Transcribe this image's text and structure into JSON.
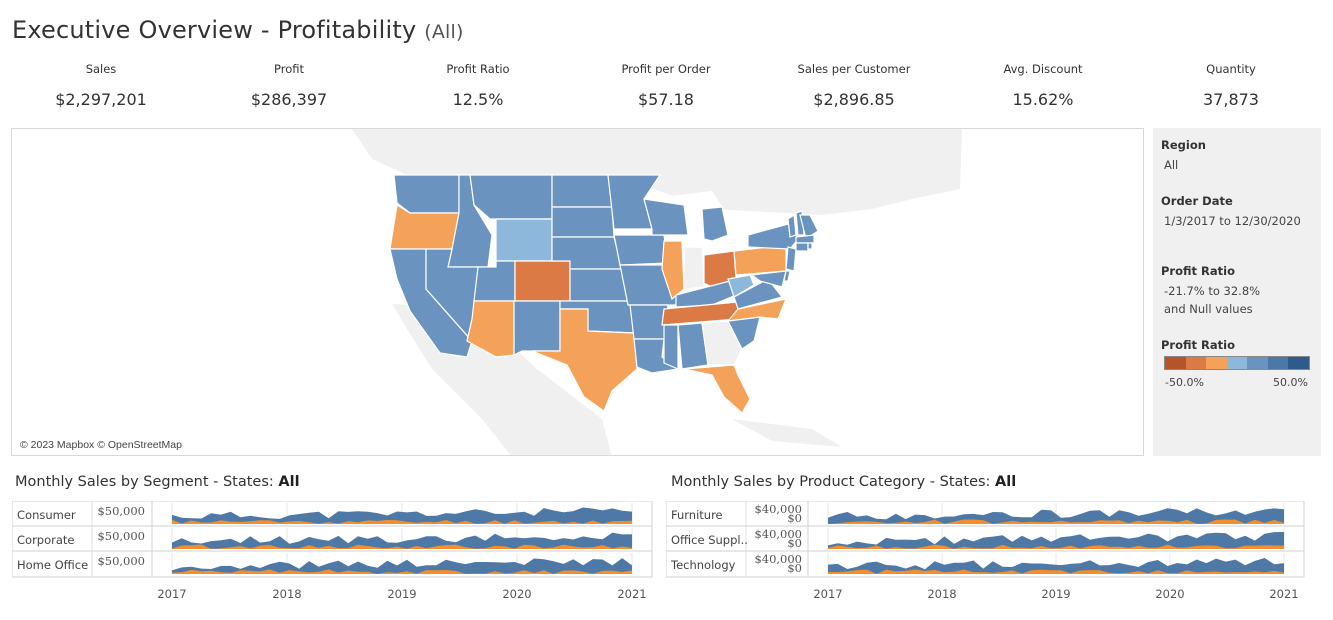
{
  "header": {
    "title": "Executive Overview - Profitability",
    "filter_suffix": "(All)"
  },
  "kpis": [
    {
      "label": "Sales",
      "value": "$2,297,201"
    },
    {
      "label": "Profit",
      "value": "$286,397"
    },
    {
      "label": "Profit Ratio",
      "value": "12.5%"
    },
    {
      "label": "Profit per Order",
      "value": "$57.18"
    },
    {
      "label": "Sales per Customer",
      "value": "$2,896.85"
    },
    {
      "label": "Avg. Discount",
      "value": "15.62%"
    },
    {
      "label": "Quantity",
      "value": "37,873"
    }
  ],
  "map": {
    "attribution": "© 2023 Mapbox © OpenStreetMap",
    "colors": {
      "dark_blue": "#6a93bf",
      "light_blue": "#8eb7dc",
      "orange": "#f4a25a",
      "dark_orange": "#db7a45",
      "land": "#f0f0f0",
      "border": "#ffffff"
    }
  },
  "filters": {
    "region": {
      "label": "Region",
      "value": "All"
    },
    "order_date": {
      "label": "Order Date",
      "value": "1/3/2017 to 12/30/2020"
    },
    "profit_ratio": {
      "label": "Profit Ratio",
      "value_line1": "-21.7% to 32.8%",
      "value_line2": "and Null values"
    },
    "legend": {
      "label": "Profit Ratio",
      "min": "-50.0%",
      "max": "50.0%",
      "colors": [
        "#b5542b",
        "#db7a45",
        "#f4a25a",
        "#8eb7dc",
        "#6a93bf",
        "#4a79a8",
        "#2f5a8c"
      ]
    }
  },
  "segment_chart": {
    "title_prefix": "Monthly Sales by Segment - States: ",
    "title_state": "All",
    "rows": [
      {
        "label": "Consumer",
        "tick": "$50,000"
      },
      {
        "label": "Corporate",
        "tick": "$50,000"
      },
      {
        "label": "Home Office",
        "tick": "$50,000"
      }
    ],
    "years": [
      "2017",
      "2018",
      "2019",
      "2020",
      "2021"
    ]
  },
  "category_chart": {
    "title_prefix": "Monthly Sales by Product Category - States: ",
    "title_state": "All",
    "rows": [
      {
        "label": "Furniture",
        "tick_top": "$40,000",
        "tick_bottom": "$0"
      },
      {
        "label": "Office Suppl..",
        "tick_top": "$40,000",
        "tick_bottom": "$0"
      },
      {
        "label": "Technology",
        "tick_top": "$40,000",
        "tick_bottom": "$0"
      }
    ],
    "years": [
      "2017",
      "2018",
      "2019",
      "2020",
      "2021"
    ]
  },
  "chart_colors": {
    "sales": "#4e79a7",
    "profit": "#f28e2b",
    "grid": "#e6e6e6"
  }
}
